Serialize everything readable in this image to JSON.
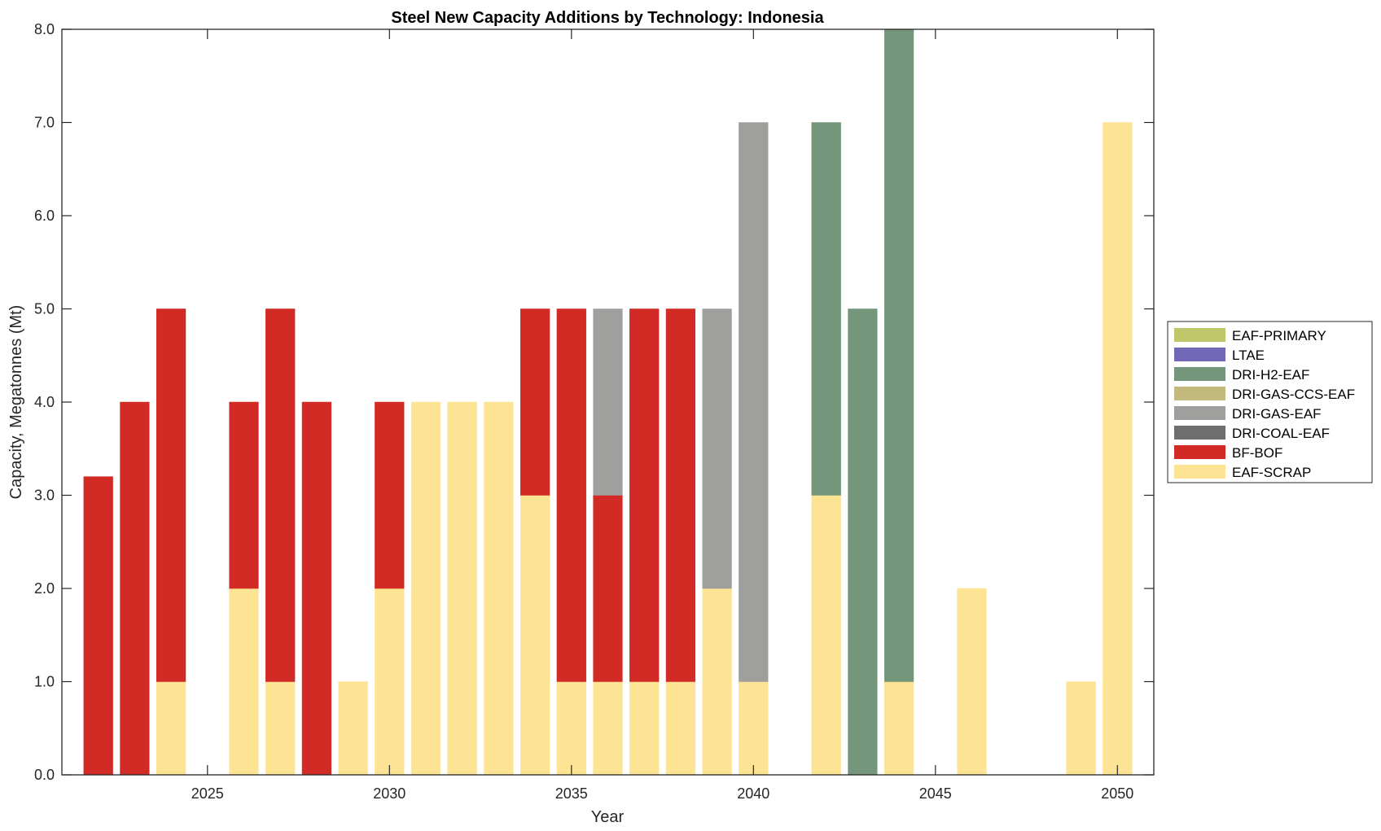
{
  "chart_data": {
    "type": "bar",
    "stacked": true,
    "title": "Steel New Capacity Additions by Technology: Indonesia",
    "xlabel": "Year",
    "ylabel": "Capacity, Megatonnes (Mt)",
    "xlim": [
      2021,
      2051
    ],
    "ylim": [
      0,
      8
    ],
    "x_ticks": [
      2025,
      2030,
      2035,
      2040,
      2045,
      2050
    ],
    "y_ticks": [
      0.0,
      1.0,
      2.0,
      3.0,
      4.0,
      5.0,
      6.0,
      7.0,
      8.0
    ],
    "y_tick_format": "1dp",
    "grid": false,
    "legend_position": "outside-right",
    "categories": [
      2022,
      2023,
      2024,
      2025,
      2026,
      2027,
      2028,
      2029,
      2030,
      2031,
      2032,
      2033,
      2034,
      2035,
      2036,
      2037,
      2038,
      2039,
      2040,
      2041,
      2042,
      2043,
      2044,
      2045,
      2046,
      2047,
      2048,
      2049,
      2050
    ],
    "series": [
      {
        "name": "EAF-SCRAP",
        "color": "#fde394",
        "values": [
          0,
          0,
          1,
          0,
          2,
          1,
          0,
          1,
          2,
          4,
          4,
          4,
          3,
          1,
          1,
          1,
          1,
          2,
          1,
          0,
          3,
          0,
          1,
          0,
          2,
          0,
          0,
          1,
          7
        ]
      },
      {
        "name": "BF-BOF",
        "color": "#d22b25",
        "values": [
          3.2,
          4,
          4,
          0,
          2,
          4,
          4,
          0,
          2,
          0,
          0,
          0,
          2,
          4,
          2,
          4,
          4,
          0,
          0,
          0,
          0,
          0,
          0,
          0,
          0,
          0,
          0,
          0,
          0
        ]
      },
      {
        "name": "DRI-COAL-EAF",
        "color": "#6e6e6e",
        "values": [
          0,
          0,
          0,
          0,
          0,
          0,
          0,
          0,
          0,
          0,
          0,
          0,
          0,
          0,
          0,
          0,
          0,
          0,
          0,
          0,
          0,
          0,
          0,
          0,
          0,
          0,
          0,
          0,
          0
        ]
      },
      {
        "name": "DRI-GAS-EAF",
        "color": "#9f9f9d",
        "values": [
          0,
          0,
          0,
          0,
          0,
          0,
          0,
          0,
          0,
          0,
          0,
          0,
          0,
          0,
          2,
          0,
          0,
          3,
          6,
          0,
          0,
          0,
          0,
          0,
          0,
          0,
          0,
          0,
          0
        ]
      },
      {
        "name": "DRI-GAS-CCS-EAF",
        "color": "#c4b97c",
        "values": [
          0,
          0,
          0,
          0,
          0,
          0,
          0,
          0,
          0,
          0,
          0,
          0,
          0,
          0,
          0,
          0,
          0,
          0,
          0,
          0,
          0,
          0,
          0,
          0,
          0,
          0,
          0,
          0,
          0
        ]
      },
      {
        "name": "DRI-H2-EAF",
        "color": "#74977b",
        "values": [
          0,
          0,
          0,
          0,
          0,
          0,
          0,
          0,
          0,
          0,
          0,
          0,
          0,
          0,
          0,
          0,
          0,
          0,
          0,
          0,
          4,
          5,
          7,
          0,
          0,
          0,
          0,
          0,
          0
        ]
      },
      {
        "name": "LTAE",
        "color": "#7268b8",
        "values": [
          0,
          0,
          0,
          0,
          0,
          0,
          0,
          0,
          0,
          0,
          0,
          0,
          0,
          0,
          0,
          0,
          0,
          0,
          0,
          0,
          0,
          0,
          0,
          0,
          0,
          0,
          0,
          0,
          0
        ]
      },
      {
        "name": "EAF-PRIMARY",
        "color": "#bfc66a",
        "values": [
          0,
          0,
          0,
          0,
          0,
          0,
          0,
          0,
          0,
          0,
          0,
          0,
          0,
          0,
          0,
          0,
          0,
          0,
          0,
          0,
          0,
          0,
          0,
          0,
          0,
          0,
          0,
          0,
          0
        ]
      }
    ],
    "legend_order": [
      "EAF-PRIMARY",
      "LTAE",
      "DRI-H2-EAF",
      "DRI-GAS-CCS-EAF",
      "DRI-GAS-EAF",
      "DRI-COAL-EAF",
      "BF-BOF",
      "EAF-SCRAP"
    ]
  }
}
